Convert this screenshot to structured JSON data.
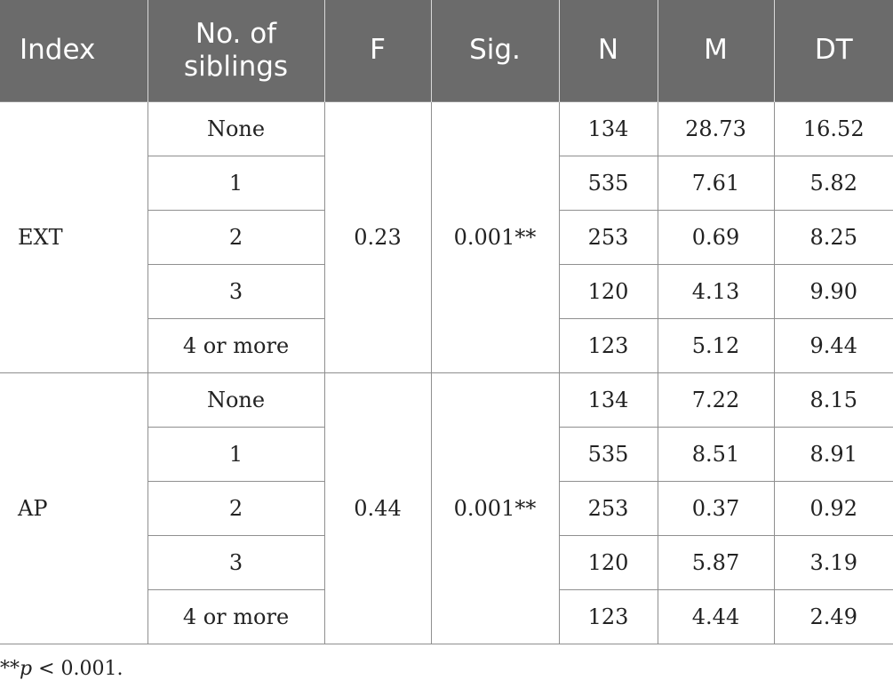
{
  "colors": {
    "header_background": "#6b6b6b",
    "header_text": "#ffffff",
    "grid_line": "#8f8f8f"
  },
  "header": {
    "index": "Index",
    "siblings_line1": "No. of",
    "siblings_line2": "siblings",
    "f": "F",
    "sig": "Sig.",
    "n": "N",
    "m": "M",
    "dt": "DT"
  },
  "groups": [
    {
      "index": "EXT",
      "f": "0.23",
      "sig": "0.001**",
      "rows": [
        {
          "siblings": "None",
          "n": "134",
          "m": "28.73",
          "dt": "16.52"
        },
        {
          "siblings": "1",
          "n": "535",
          "m": "7.61",
          "dt": "5.82"
        },
        {
          "siblings": "2",
          "n": "253",
          "m": "0.69",
          "dt": "8.25"
        },
        {
          "siblings": "3",
          "n": "120",
          "m": "4.13",
          "dt": "9.90"
        },
        {
          "siblings": "4 or more",
          "n": "123",
          "m": "5.12",
          "dt": "9.44"
        }
      ]
    },
    {
      "index": "AP",
      "f": "0.44",
      "sig": "0.001**",
      "rows": [
        {
          "siblings": "None",
          "n": "134",
          "m": "7.22",
          "dt": "8.15"
        },
        {
          "siblings": "1",
          "n": "535",
          "m": "8.51",
          "dt": "8.91"
        },
        {
          "siblings": "2",
          "n": "253",
          "m": "0.37",
          "dt": "0.92"
        },
        {
          "siblings": "3",
          "n": "120",
          "m": "5.87",
          "dt": "3.19"
        },
        {
          "siblings": "4 or more",
          "n": "123",
          "m": "4.44",
          "dt": "2.49"
        }
      ]
    }
  ],
  "footnote": {
    "stars": "**",
    "p": "p",
    "rest": " < 0.001."
  }
}
